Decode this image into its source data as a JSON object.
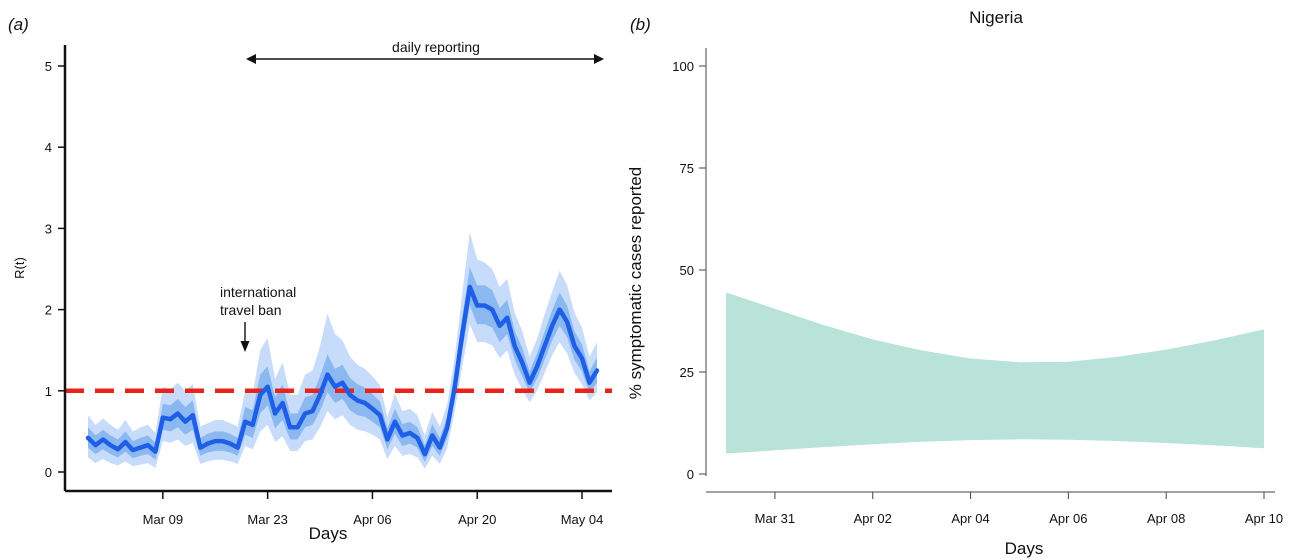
{
  "panel_a": {
    "panel_label": "(a)",
    "annotations": {
      "daily_reporting": "daily reporting",
      "travel_ban_line1": "international",
      "travel_ban_line2": "travel ban"
    }
  },
  "panel_b": {
    "panel_label": "(b)"
  },
  "chart_data": [
    {
      "type": "line",
      "title": "",
      "xlabel": "Days",
      "ylabel": "R(t)",
      "xlim": [
        0,
        80
      ],
      "ylim": [
        0,
        5
      ],
      "x_ticks": [
        {
          "label": "Mar 09",
          "x": 10
        },
        {
          "label": "Mar 23",
          "x": 24
        },
        {
          "label": "Apr 06",
          "x": 38
        },
        {
          "label": "Apr 20",
          "x": 52
        },
        {
          "label": "May 04",
          "x": 66
        }
      ],
      "y_ticks": [
        "0",
        "1",
        "2",
        "3",
        "4",
        "5"
      ],
      "reference_line": {
        "y": 1,
        "style": "dashed",
        "color": "#e8231b"
      },
      "colors": {
        "line": "#1f5fe6",
        "band_inner": "#8cb8f2",
        "band_outer": "#c6dcfa"
      },
      "series": [
        {
          "x": [
            0,
            1,
            2,
            3,
            4,
            5,
            6,
            7,
            8,
            9,
            10,
            11,
            12,
            13,
            14,
            15,
            16,
            17,
            18,
            19,
            20,
            21,
            22,
            23,
            24,
            25,
            26,
            27,
            28,
            29,
            30,
            31,
            32,
            33,
            34,
            35,
            36,
            37,
            38,
            39,
            40,
            41,
            42,
            43,
            44,
            45,
            46,
            47,
            48,
            49,
            50,
            51,
            52,
            53,
            54,
            55,
            56,
            57,
            58,
            59,
            60,
            61,
            62,
            63,
            64,
            65,
            66,
            67,
            68
          ],
          "values": [
            0.42,
            0.33,
            0.4,
            0.33,
            0.28,
            0.37,
            0.27,
            0.3,
            0.33,
            0.25,
            0.67,
            0.65,
            0.72,
            0.62,
            0.7,
            0.3,
            0.35,
            0.38,
            0.38,
            0.35,
            0.3,
            0.62,
            0.58,
            0.95,
            1.05,
            0.72,
            0.85,
            0.55,
            0.55,
            0.72,
            0.75,
            0.95,
            1.2,
            1.05,
            1.1,
            0.95,
            0.88,
            0.85,
            0.78,
            0.7,
            0.4,
            0.62,
            0.45,
            0.48,
            0.42,
            0.22,
            0.45,
            0.3,
            0.55,
            1.05,
            1.7,
            2.28,
            2.05,
            2.05,
            2.0,
            1.8,
            1.9,
            1.55,
            1.35,
            1.1,
            1.3,
            1.55,
            1.8,
            2.0,
            1.85,
            1.55,
            1.4,
            1.1,
            1.25
          ],
          "ci_inner": {
            "lower": [
              0.3,
              0.22,
              0.28,
              0.22,
              0.18,
              0.25,
              0.17,
              0.2,
              0.22,
              0.15,
              0.52,
              0.5,
              0.55,
              0.46,
              0.52,
              0.2,
              0.24,
              0.26,
              0.26,
              0.24,
              0.2,
              0.46,
              0.42,
              0.72,
              0.82,
              0.54,
              0.64,
              0.4,
              0.4,
              0.55,
              0.58,
              0.75,
              0.98,
              0.85,
              0.9,
              0.76,
              0.7,
              0.68,
              0.62,
              0.55,
              0.28,
              0.47,
              0.32,
              0.35,
              0.3,
              0.12,
              0.32,
              0.2,
              0.42,
              0.9,
              1.5,
              2.05,
              1.82,
              1.82,
              1.78,
              1.6,
              1.7,
              1.38,
              1.18,
              0.98,
              1.15,
              1.38,
              1.62,
              1.8,
              1.66,
              1.38,
              1.24,
              0.98,
              1.1
            ],
            "upper": [
              0.55,
              0.45,
              0.52,
              0.45,
              0.4,
              0.5,
              0.38,
              0.42,
              0.45,
              0.36,
              0.84,
              0.82,
              0.9,
              0.8,
              0.88,
              0.42,
              0.47,
              0.5,
              0.5,
              0.47,
              0.42,
              0.8,
              0.76,
              1.2,
              1.3,
              0.92,
              1.08,
              0.72,
              0.72,
              0.92,
              0.95,
              1.18,
              1.45,
              1.27,
              1.32,
              1.16,
              1.08,
              1.04,
              0.96,
              0.87,
              0.54,
              0.78,
              0.59,
              0.62,
              0.55,
              0.33,
              0.59,
              0.42,
              0.68,
              1.22,
              1.92,
              2.52,
              2.3,
              2.3,
              2.24,
              2.02,
              2.12,
              1.74,
              1.53,
              1.24,
              1.46,
              1.73,
              1.99,
              2.21,
              2.05,
              1.73,
              1.57,
              1.24,
              1.41
            ]
          },
          "ci_outer": {
            "lower": [
              0.18,
              0.11,
              0.16,
              0.11,
              0.08,
              0.13,
              0.07,
              0.09,
              0.11,
              0.05,
              0.38,
              0.36,
              0.4,
              0.32,
              0.36,
              0.1,
              0.13,
              0.15,
              0.15,
              0.13,
              0.1,
              0.32,
              0.28,
              0.5,
              0.58,
              0.37,
              0.44,
              0.26,
              0.26,
              0.38,
              0.4,
              0.55,
              0.75,
              0.65,
              0.7,
              0.58,
              0.52,
              0.5,
              0.46,
              0.4,
              0.16,
              0.32,
              0.2,
              0.22,
              0.18,
              0.04,
              0.2,
              0.1,
              0.3,
              0.75,
              1.3,
              1.82,
              1.6,
              1.6,
              1.56,
              1.4,
              1.5,
              1.2,
              1.02,
              0.86,
              1.0,
              1.22,
              1.44,
              1.6,
              1.46,
              1.22,
              1.08,
              0.88,
              0.98
            ],
            "upper": [
              0.7,
              0.58,
              0.66,
              0.58,
              0.52,
              0.64,
              0.5,
              0.55,
              0.58,
              0.48,
              1.05,
              1.02,
              1.1,
              1.0,
              1.08,
              0.56,
              0.6,
              0.64,
              0.64,
              0.6,
              0.56,
              1.0,
              0.96,
              1.5,
              1.65,
              1.15,
              1.35,
              0.95,
              0.95,
              1.2,
              1.25,
              1.55,
              1.95,
              1.7,
              1.62,
              1.42,
              1.32,
              1.27,
              1.18,
              1.07,
              0.68,
              0.96,
              0.75,
              0.78,
              0.7,
              0.45,
              0.74,
              0.56,
              0.84,
              1.42,
              2.2,
              2.95,
              2.62,
              2.58,
              2.5,
              2.28,
              2.38,
              1.96,
              1.74,
              1.42,
              1.64,
              1.94,
              2.22,
              2.48,
              2.3,
              1.96,
              1.78,
              1.42,
              1.6
            ]
          }
        }
      ]
    },
    {
      "type": "area",
      "title": "Nigeria",
      "xlabel": "Days",
      "ylabel": "% symptomatic cases reported",
      "xlim": [
        0,
        12
      ],
      "ylim": [
        0,
        100
      ],
      "x_ticks": [
        {
          "label": "Mar 31",
          "x": 1
        },
        {
          "label": "Apr 02",
          "x": 3
        },
        {
          "label": "Apr 04",
          "x": 5
        },
        {
          "label": "Apr 06",
          "x": 7
        },
        {
          "label": "Apr 08",
          "x": 9
        },
        {
          "label": "Apr 10",
          "x": 11
        }
      ],
      "y_ticks": [
        "0",
        "25",
        "50",
        "75",
        "100"
      ],
      "colors": {
        "fill": "#b9e2d9"
      },
      "series": [
        {
          "x": [
            0,
            1,
            2,
            3,
            4,
            5,
            6,
            7,
            8,
            9,
            10,
            11
          ],
          "lower": [
            5,
            5.8,
            6.6,
            7.3,
            7.9,
            8.3,
            8.5,
            8.4,
            8.1,
            7.6,
            7.0,
            6.3
          ],
          "upper": [
            44.5,
            40.5,
            36.5,
            33.0,
            30.3,
            28.3,
            27.4,
            27.5,
            28.7,
            30.5,
            32.8,
            35.5
          ]
        }
      ]
    }
  ]
}
